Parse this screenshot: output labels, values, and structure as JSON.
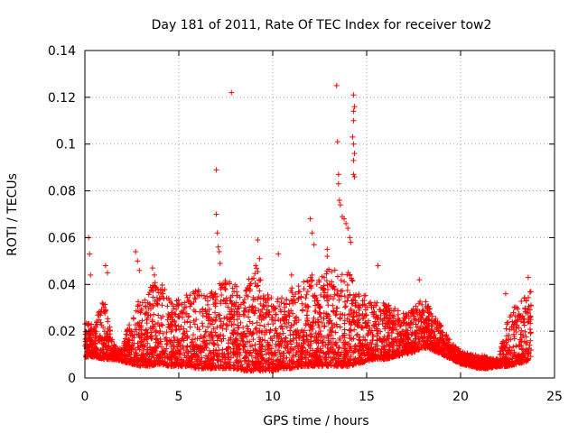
{
  "chart_data": {
    "type": "scatter",
    "title": "Day 181 of 2011, Rate Of TEC Index for receiver tow2",
    "xlabel": "GPS time / hours",
    "ylabel": "ROTI / TECUs",
    "xlim": [
      0,
      25
    ],
    "ylim": [
      0,
      0.14
    ],
    "xticks": [
      "0",
      "5",
      "10",
      "15",
      "20",
      "25"
    ],
    "yticks": [
      "0",
      "0.02",
      "0.04",
      "0.06",
      "0.08",
      "0.1",
      "0.12",
      "0.14"
    ],
    "grid": true,
    "marker": "plus",
    "color": "#ff0000",
    "envelope_hours": [
      0,
      0.5,
      1,
      1.5,
      2,
      2.5,
      3,
      3.5,
      4,
      4.5,
      5,
      5.5,
      6,
      6.5,
      7,
      7.5,
      8,
      8.5,
      9,
      9.5,
      10,
      10.5,
      11,
      11.5,
      12,
      12.5,
      13,
      13.5,
      14,
      14.5,
      15,
      15.5,
      16,
      16.5,
      17,
      17.5,
      18,
      18.5,
      19,
      19.5,
      20,
      20.5,
      21,
      21.5,
      22,
      22.5,
      23,
      23.5,
      23.75
    ],
    "envelope_low": [
      0.009,
      0.009,
      0.008,
      0.008,
      0.007,
      0.006,
      0.005,
      0.005,
      0.006,
      0.005,
      0.005,
      0.005,
      0.004,
      0.004,
      0.004,
      0.004,
      0.004,
      0.003,
      0.003,
      0.003,
      0.003,
      0.004,
      0.004,
      0.005,
      0.005,
      0.005,
      0.005,
      0.005,
      0.005,
      0.006,
      0.007,
      0.008,
      0.008,
      0.009,
      0.01,
      0.011,
      0.013,
      0.012,
      0.01,
      0.008,
      0.006,
      0.005,
      0.004,
      0.004,
      0.005,
      0.005,
      0.006,
      0.007,
      0.008
    ],
    "envelope_high": [
      0.025,
      0.022,
      0.035,
      0.015,
      0.012,
      0.03,
      0.034,
      0.04,
      0.042,
      0.034,
      0.034,
      0.036,
      0.038,
      0.036,
      0.04,
      0.042,
      0.04,
      0.036,
      0.05,
      0.04,
      0.034,
      0.035,
      0.04,
      0.04,
      0.045,
      0.042,
      0.048,
      0.046,
      0.046,
      0.038,
      0.035,
      0.033,
      0.032,
      0.03,
      0.028,
      0.03,
      0.036,
      0.028,
      0.022,
      0.016,
      0.012,
      0.01,
      0.01,
      0.009,
      0.008,
      0.025,
      0.032,
      0.035,
      0.04
    ],
    "scattered_outliers": [
      {
        "x": 0.2,
        "y": 0.06
      },
      {
        "x": 0.25,
        "y": 0.053
      },
      {
        "x": 0.3,
        "y": 0.044
      },
      {
        "x": 1.1,
        "y": 0.048
      },
      {
        "x": 1.2,
        "y": 0.045
      },
      {
        "x": 2.7,
        "y": 0.054
      },
      {
        "x": 2.8,
        "y": 0.05
      },
      {
        "x": 2.9,
        "y": 0.046
      },
      {
        "x": 3.6,
        "y": 0.047
      },
      {
        "x": 3.7,
        "y": 0.044
      },
      {
        "x": 7.0,
        "y": 0.089
      },
      {
        "x": 7.0,
        "y": 0.07
      },
      {
        "x": 7.05,
        "y": 0.062
      },
      {
        "x": 7.1,
        "y": 0.056
      },
      {
        "x": 7.15,
        "y": 0.054
      },
      {
        "x": 7.2,
        "y": 0.049
      },
      {
        "x": 7.8,
        "y": 0.122
      },
      {
        "x": 9.2,
        "y": 0.059
      },
      {
        "x": 9.3,
        "y": 0.051
      },
      {
        "x": 10.3,
        "y": 0.053
      },
      {
        "x": 11.0,
        "y": 0.044
      },
      {
        "x": 12.0,
        "y": 0.068
      },
      {
        "x": 12.1,
        "y": 0.062
      },
      {
        "x": 12.2,
        "y": 0.057
      },
      {
        "x": 12.9,
        "y": 0.055
      },
      {
        "x": 12.9,
        "y": 0.052
      },
      {
        "x": 13.4,
        "y": 0.125
      },
      {
        "x": 13.45,
        "y": 0.101
      },
      {
        "x": 13.5,
        "y": 0.087
      },
      {
        "x": 13.5,
        "y": 0.083
      },
      {
        "x": 13.55,
        "y": 0.076
      },
      {
        "x": 13.6,
        "y": 0.074
      },
      {
        "x": 13.7,
        "y": 0.069
      },
      {
        "x": 13.8,
        "y": 0.068
      },
      {
        "x": 13.9,
        "y": 0.066
      },
      {
        "x": 14.0,
        "y": 0.064
      },
      {
        "x": 14.1,
        "y": 0.06
      },
      {
        "x": 14.15,
        "y": 0.058
      },
      {
        "x": 14.3,
        "y": 0.121
      },
      {
        "x": 14.35,
        "y": 0.116
      },
      {
        "x": 14.3,
        "y": 0.114
      },
      {
        "x": 14.3,
        "y": 0.11
      },
      {
        "x": 14.25,
        "y": 0.103
      },
      {
        "x": 14.3,
        "y": 0.1
      },
      {
        "x": 14.35,
        "y": 0.096
      },
      {
        "x": 14.3,
        "y": 0.093
      },
      {
        "x": 14.3,
        "y": 0.087
      },
      {
        "x": 14.35,
        "y": 0.086
      },
      {
        "x": 15.6,
        "y": 0.048
      },
      {
        "x": 17.8,
        "y": 0.042
      },
      {
        "x": 22.4,
        "y": 0.036
      },
      {
        "x": 23.6,
        "y": 0.043
      }
    ]
  }
}
